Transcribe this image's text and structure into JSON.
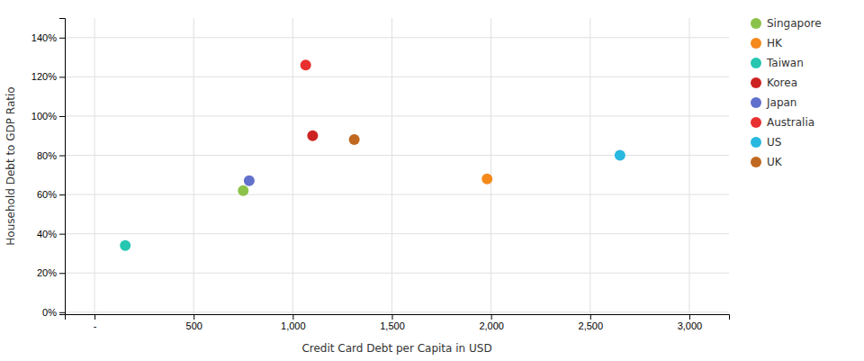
{
  "chart_data": {
    "type": "scatter",
    "xlabel": "Credit Card Debt per Capita in USD",
    "ylabel": "Household Debt to GDP Ratio",
    "xlim": [
      -150,
      3200
    ],
    "ylim": [
      -0.01,
      1.5
    ],
    "xticks": [
      {
        "value": 0,
        "label": "-"
      },
      500,
      {
        "value": 1000,
        "label": "1,000"
      },
      {
        "value": 1500,
        "label": "1,500"
      },
      {
        "value": 2000,
        "label": "2,000"
      },
      {
        "value": 2500,
        "label": "2,500"
      },
      {
        "value": 3000,
        "label": "3,000"
      }
    ],
    "yticks": [
      {
        "value": 0.0,
        "label": "0%"
      },
      {
        "value": 0.2,
        "label": "20%"
      },
      {
        "value": 0.4,
        "label": "40%"
      },
      {
        "value": 0.6,
        "label": "60%"
      },
      {
        "value": 0.8,
        "label": "80%"
      },
      {
        "value": 1.0,
        "label": "100%"
      },
      {
        "value": 1.2,
        "label": "120%"
      },
      {
        "value": 1.4,
        "label": "140%"
      }
    ],
    "grid": true,
    "legend": "right",
    "series": [
      {
        "name": "Singapore",
        "color": "#8bc34a",
        "x": [
          750
        ],
        "values": [
          0.62
        ]
      },
      {
        "name": "HK",
        "color": "#f5891a",
        "x": [
          1980
        ],
        "values": [
          0.68
        ]
      },
      {
        "name": "Taiwan",
        "color": "#26c6b0",
        "x": [
          155
        ],
        "values": [
          0.34
        ]
      },
      {
        "name": "Korea",
        "color": "#cc2222",
        "x": [
          1100
        ],
        "values": [
          0.9
        ]
      },
      {
        "name": "Japan",
        "color": "#6070cc",
        "x": [
          780
        ],
        "values": [
          0.67
        ]
      },
      {
        "name": "Australia",
        "color": "#e83030",
        "x": [
          1065
        ],
        "values": [
          1.26
        ]
      },
      {
        "name": "US",
        "color": "#28b8e0",
        "x": [
          2650
        ],
        "values": [
          0.8
        ]
      },
      {
        "name": "UK",
        "color": "#c06820",
        "x": [
          1310
        ],
        "values": [
          0.88
        ]
      }
    ]
  }
}
